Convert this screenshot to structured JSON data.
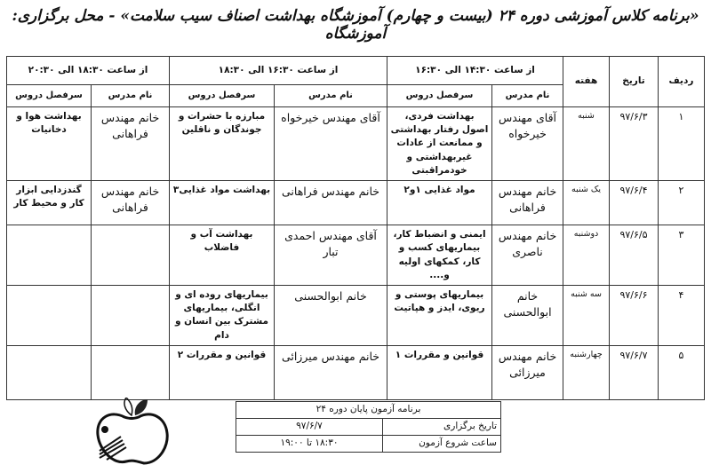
{
  "title": "«برنامه کلاس آموزشی دوره ۲۴ (بیست و چهارم) آموزشگاه بهداشت اصناف سیب سلامت» - محل برگزاری: آموزشگاه",
  "header": {
    "row_label": "ردیف",
    "date_label": "تاریخ",
    "week_label": "هفته",
    "slots": [
      "از ساعت ۱۴:۳۰ الی ۱۶:۳۰",
      "از ساعت ۱۶:۳۰ الی ۱۸:۳۰",
      "از ساعت ۱۸:۳۰ الی ۲۰:۳۰"
    ],
    "teacher_label": "نام مدرس",
    "topic_label": "سرفصل دروس"
  },
  "rows": [
    {
      "num": "۱",
      "date": "۹۷/۶/۳",
      "day": "شنبه",
      "t1": "آقای مهندس خیرخواه",
      "s1": "بهداشت فردی، اصول رفتار بهداشتی و ممانعت از عادات غیربهداشتی و خودمراقبتی",
      "t2": "آقای مهندس خیرخواه",
      "s2": "مبارزه با حشرات و جوندگان و ناقلین",
      "t3": "خانم مهندس فراهانی",
      "s3": "بهداشت هوا و دخانیات"
    },
    {
      "num": "۲",
      "date": "۹۷/۶/۴",
      "day": "یک شنبه",
      "t1": "خانم مهندس فراهانی",
      "s1": "مواد غذایی ۱و۲",
      "t2": "خانم مهندس فراهانی",
      "s2": "بهداشت مواد غذایی۳",
      "t3": "خانم مهندس فراهانی",
      "s3": "گندزدایی ابزار کار و محیط کار"
    },
    {
      "num": "۳",
      "date": "۹۷/۶/۵",
      "day": "دوشنبه",
      "t1": "خانم مهندس ناصری",
      "s1": "ایمنی و انضباط کار، بیماریهای کسب و کار، کمکهای اولیه و....",
      "t2": "آقای مهندس احمدی تبار",
      "s2": "بهداشت آب و فاضلاب",
      "t3": "",
      "s3": ""
    },
    {
      "num": "۴",
      "date": "۹۷/۶/۶",
      "day": "سه شنبه",
      "t1": "خانم ابوالحسنی",
      "s1": "بیماریهای پوستی و ریوی، ایدز و هپاتیت",
      "t2": "خانم ابوالحسنی",
      "s2": "بیماریهای روده ای و انگلی، بیماریهای مشترک بین انسان و دام",
      "t3": "",
      "s3": ""
    },
    {
      "num": "۵",
      "date": "۹۷/۶/۷",
      "day": "چهارشنبه",
      "t1": "خانم مهندس میرزائی",
      "s1": "قوانین و مقررات ۱",
      "t2": "خانم مهندس میرزائی",
      "s2": "قوانین و مقررات ۲",
      "t3": "",
      "s3": ""
    }
  ],
  "exam": {
    "title": "برنامه آزمون پایان دوره ۲۴",
    "date_label": "تاریخ برگزاری",
    "date_value": "۹۷/۶/۷",
    "time_label": "ساعت شروع آزمون",
    "time_value": "۱۸:۳۰ تا ۱۹:۰۰"
  },
  "logo": "apple-book-logo"
}
